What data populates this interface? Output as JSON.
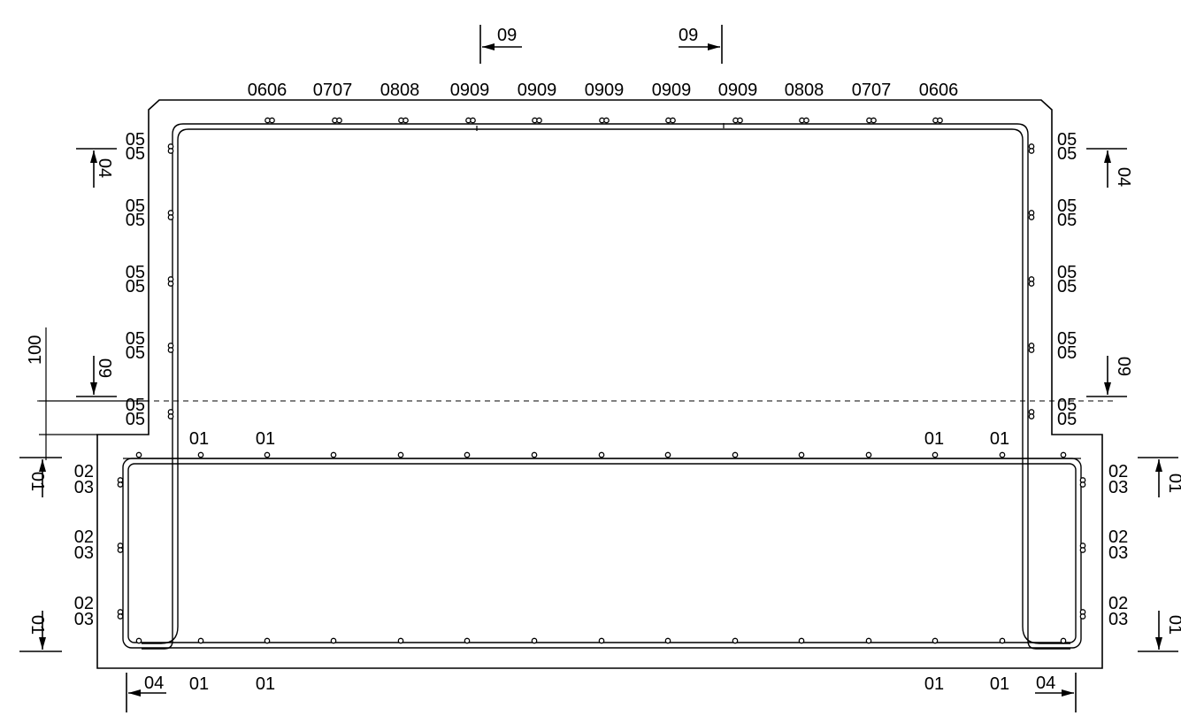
{
  "top_bar_labels": [
    "0606",
    "0707",
    "0808",
    "0909",
    "0909",
    "0909",
    "0909",
    "0909",
    "0808",
    "0707",
    "0606"
  ],
  "wall_labels": {
    "upper": "05",
    "lower": "05",
    "count_per_side": 5
  },
  "base_side_labels": {
    "upper": "02",
    "lower": "03",
    "count_per_side": 3
  },
  "base_top_labels": [
    "01",
    "01",
    "01",
    "01"
  ],
  "base_bottom_labels": [
    "01",
    "01",
    "01",
    "01"
  ],
  "section_markers": {
    "top_left": "09",
    "top_right": "09",
    "left_upper": "04",
    "left_mid": "09",
    "left_base_upper": "01",
    "left_base_lower": "01",
    "right_upper": "04",
    "right_mid": "09",
    "right_base_upper": "01",
    "right_base_lower": "01",
    "bottom_left": "04",
    "bottom_right": "04"
  },
  "dimension_label": "100"
}
